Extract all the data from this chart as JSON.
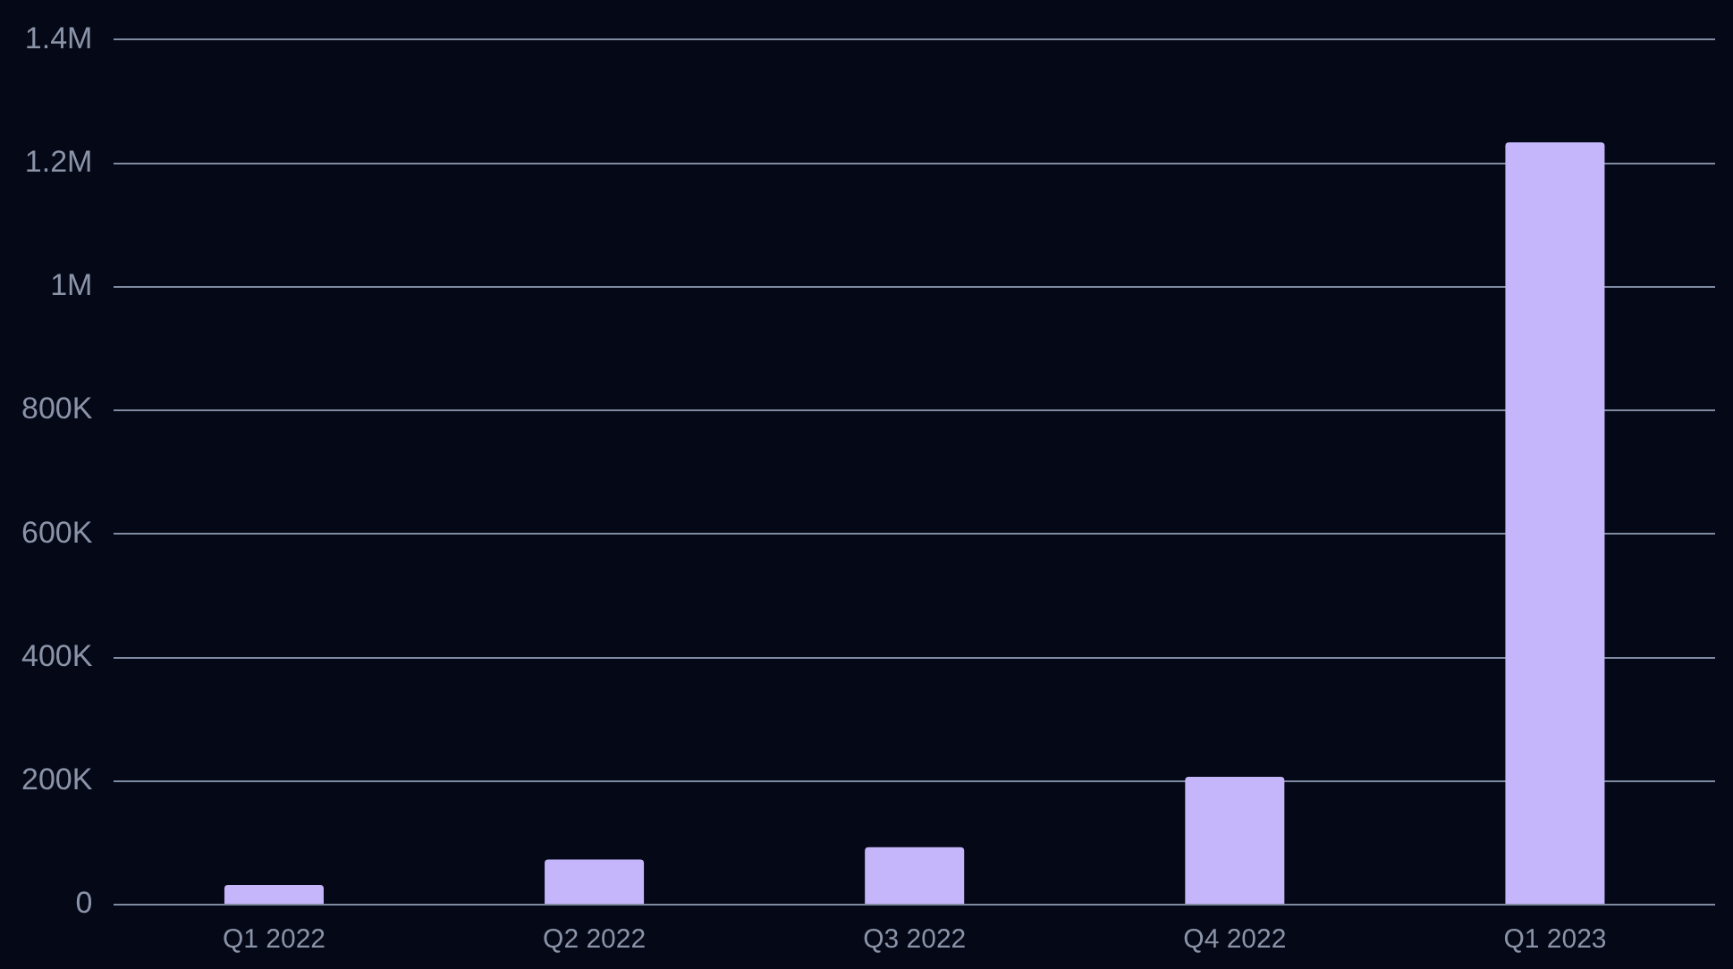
{
  "chart_data": {
    "type": "bar",
    "categories": [
      "Q1 2022",
      "Q2 2022",
      "Q3 2022",
      "Q4 2022",
      "Q1 2023"
    ],
    "values": [
      32000,
      73000,
      93000,
      207000,
      1234000
    ],
    "color": "#c5b6fb",
    "ylim": [
      0,
      1400000
    ],
    "yticks": [
      {
        "value": 0,
        "label": "0"
      },
      {
        "value": 200000,
        "label": "200K"
      },
      {
        "value": 400000,
        "label": "400K"
      },
      {
        "value": 600000,
        "label": "600K"
      },
      {
        "value": 800000,
        "label": "800K"
      },
      {
        "value": 1000000,
        "label": "1M"
      },
      {
        "value": 1200000,
        "label": "1.2M"
      },
      {
        "value": 1400000,
        "label": "1.4M"
      }
    ],
    "grid": "y"
  }
}
